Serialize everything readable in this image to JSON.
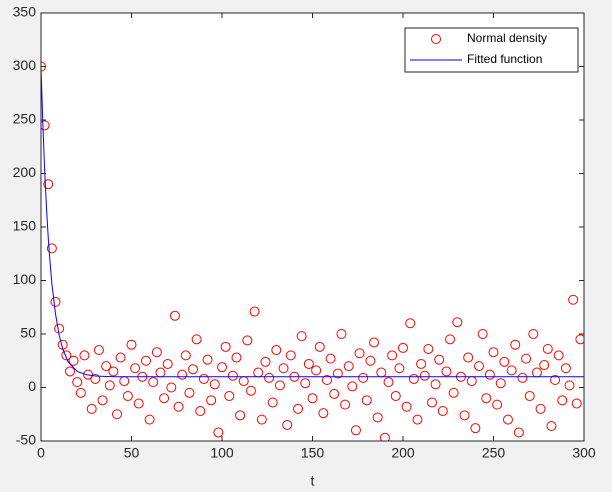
{
  "chart_data": {
    "type": "scatter",
    "xlabel": "t",
    "xlim": [
      0,
      300
    ],
    "xticks": [
      0,
      50,
      100,
      150,
      200,
      250,
      300
    ],
    "ylim": [
      -50,
      350
    ],
    "yticks": [
      -50,
      0,
      50,
      100,
      150,
      200,
      250,
      300,
      350
    ],
    "legend": "upper right",
    "series": [
      {
        "name": "Normal density",
        "style": "marker",
        "color": "#ff0000",
        "x": [
          0,
          2,
          4,
          6,
          8,
          10,
          12,
          14,
          16,
          18,
          20,
          22,
          24,
          26,
          28,
          30,
          32,
          34,
          36,
          38,
          40,
          42,
          44,
          46,
          48,
          50,
          52,
          54,
          56,
          58,
          60,
          62,
          64,
          66,
          68,
          70,
          72,
          74,
          76,
          78,
          80,
          82,
          84,
          86,
          88,
          90,
          92,
          94,
          96,
          98,
          100,
          102,
          104,
          106,
          108,
          110,
          112,
          114,
          116,
          118,
          120,
          122,
          124,
          126,
          128,
          130,
          132,
          134,
          136,
          138,
          140,
          142,
          144,
          146,
          148,
          150,
          152,
          154,
          156,
          158,
          160,
          162,
          164,
          166,
          168,
          170,
          172,
          174,
          176,
          178,
          180,
          182,
          184,
          186,
          188,
          190,
          192,
          194,
          196,
          198,
          200,
          202,
          204,
          206,
          208,
          210,
          212,
          214,
          216,
          218,
          220,
          222,
          224,
          226,
          228,
          230,
          232,
          234,
          236,
          238,
          240,
          242,
          244,
          246,
          248,
          250,
          252,
          254,
          256,
          258,
          260,
          262,
          264,
          266,
          268,
          270,
          272,
          274,
          276,
          278,
          280,
          282,
          284,
          286,
          288,
          290,
          292,
          294,
          296,
          298
        ],
        "values": [
          300,
          245,
          190,
          130,
          80,
          55,
          40,
          30,
          15,
          25,
          5,
          -5,
          30,
          12,
          -20,
          8,
          35,
          -12,
          20,
          2,
          15,
          -25,
          28,
          6,
          -8,
          40,
          18,
          -15,
          10,
          25,
          -30,
          5,
          33,
          14,
          -10,
          22,
          0,
          67,
          -18,
          12,
          30,
          -5,
          17,
          45,
          -22,
          8,
          26,
          -12,
          3,
          -42,
          19,
          38,
          -8,
          11,
          28,
          -26,
          6,
          44,
          -3,
          71,
          14,
          -30,
          24,
          9,
          -14,
          35,
          2,
          18,
          -35,
          30,
          10,
          -20,
          48,
          4,
          22,
          -10,
          16,
          38,
          -24,
          7,
          27,
          -6,
          13,
          50,
          -16,
          20,
          1,
          -40,
          32,
          9,
          -12,
          25,
          42,
          -28,
          14,
          -47,
          5,
          30,
          -8,
          18,
          37,
          -18,
          60,
          8,
          -30,
          22,
          11,
          36,
          -14,
          3,
          26,
          -22,
          15,
          45,
          -5,
          61,
          10,
          -26,
          28,
          6,
          -38,
          20,
          50,
          -10,
          12,
          33,
          -16,
          4,
          24,
          -30,
          16,
          40,
          -42,
          9,
          27,
          -8,
          50,
          14,
          -20,
          21,
          36,
          -36,
          7,
          30,
          -12,
          18,
          2,
          82,
          -15,
          45
        ]
      },
      {
        "name": "Fitted function",
        "style": "line",
        "color": "#0000ff",
        "x": [
          0,
          1,
          2,
          3,
          4,
          5,
          6,
          8,
          10,
          12,
          15,
          20,
          25,
          30,
          40,
          300
        ],
        "values": [
          300,
          247,
          204,
          169,
          140,
          117,
          97,
          69,
          49,
          36,
          24,
          15,
          12,
          10.7,
          10,
          10
        ]
      }
    ]
  }
}
